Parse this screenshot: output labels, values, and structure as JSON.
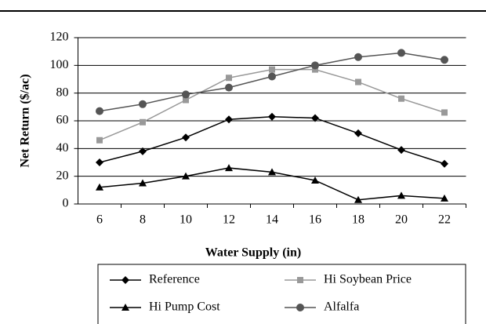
{
  "chart_data": {
    "type": "line",
    "x_label": "Water Supply (in)",
    "y_label": "Net Return ($/ac)",
    "categories": [
      "6",
      "8",
      "10",
      "12",
      "14",
      "16",
      "18",
      "20",
      "22"
    ],
    "series": [
      {
        "name": "Reference",
        "color": "#000000",
        "marker": "diamond",
        "values": [
          30,
          38,
          48,
          61,
          63,
          62,
          51,
          39,
          29
        ]
      },
      {
        "name": "Hi Soybean Price",
        "color": "#999999",
        "marker": "square",
        "values": [
          46,
          59,
          75,
          91,
          97,
          97,
          88,
          76,
          66
        ]
      },
      {
        "name": "Hi Pump Cost",
        "color": "#000000",
        "marker": "triangle",
        "values": [
          12,
          15,
          20,
          26,
          23,
          17,
          3,
          6,
          4
        ]
      },
      {
        "name": "Alfalfa",
        "color": "#555555",
        "marker": "circle",
        "values": [
          67,
          72,
          79,
          84,
          92,
          100,
          106,
          109,
          104
        ]
      }
    ],
    "ylim": [
      0,
      120
    ],
    "yticks": [
      0,
      20,
      40,
      60,
      80,
      100,
      120
    ],
    "grid": true
  }
}
